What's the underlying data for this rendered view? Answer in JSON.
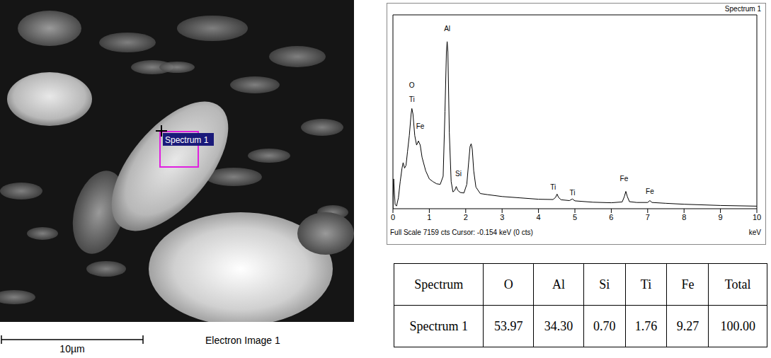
{
  "electron_image": {
    "spectrum_box_label": "Spectrum 1",
    "scale_bar": "10µm",
    "caption": "Electron Image 1"
  },
  "chart_data": {
    "type": "line",
    "title": "Spectrum 1",
    "x_label": "keV",
    "footer": "Full Scale 7159 cts Cursor: -0.154 keV (0 cts)",
    "x": [
      0,
      0.02,
      0.04,
      0.06,
      0.1,
      0.15,
      0.2,
      0.25,
      0.28,
      0.32,
      0.36,
      0.4,
      0.45,
      0.5,
      0.52,
      0.55,
      0.6,
      0.65,
      0.7,
      0.75,
      0.8,
      0.9,
      1.0,
      1.1,
      1.2,
      1.3,
      1.38,
      1.43,
      1.47,
      1.49,
      1.51,
      1.55,
      1.6,
      1.65,
      1.7,
      1.74,
      1.78,
      1.85,
      1.95,
      2.03,
      2.08,
      2.12,
      2.15,
      2.18,
      2.22,
      2.28,
      2.4,
      2.6,
      3.0,
      3.5,
      4.0,
      4.4,
      4.47,
      4.51,
      4.55,
      4.62,
      4.85,
      4.93,
      5.0,
      5.5,
      6.0,
      6.3,
      6.36,
      6.4,
      6.44,
      6.5,
      6.7,
      7.0,
      7.06,
      7.12,
      7.5,
      8.0,
      9.0,
      10.0
    ],
    "values": [
      0,
      1100,
      600,
      150,
      100,
      400,
      1000,
      1500,
      1700,
      1500,
      1600,
      2100,
      2700,
      3500,
      3700,
      3500,
      2700,
      2350,
      2500,
      2350,
      1900,
      1400,
      1100,
      1000,
      920,
      900,
      1200,
      3600,
      5800,
      6170,
      5800,
      2800,
      1000,
      620,
      680,
      820,
      680,
      600,
      580,
      900,
      1700,
      2300,
      2400,
      2200,
      1400,
      800,
      560,
      520,
      450,
      400,
      350,
      340,
      420,
      540,
      420,
      330,
      300,
      360,
      290,
      240,
      220,
      250,
      450,
      640,
      450,
      260,
      230,
      230,
      300,
      230,
      200,
      165,
      120,
      95
    ],
    "color": "#000000",
    "xlim": [
      0,
      10
    ],
    "xticks": [
      0,
      1,
      2,
      3,
      4,
      5,
      6,
      7,
      8,
      9,
      10
    ],
    "ylim": [
      0,
      7159
    ],
    "tick_labels": "x",
    "annotations": [
      {
        "text": "O",
        "x": 0.52,
        "y": 4550
      },
      {
        "text": "Ti",
        "x": 0.52,
        "y": 4050
      },
      {
        "text": "Fe",
        "x": 0.75,
        "y": 3050
      },
      {
        "text": "Al",
        "x": 1.49,
        "y": 6650
      },
      {
        "text": "Si",
        "x": 1.8,
        "y": 1300
      },
      {
        "text": "Ti",
        "x": 4.4,
        "y": 800
      },
      {
        "text": "Ti",
        "x": 4.93,
        "y": 600
      },
      {
        "text": "Fe",
        "x": 6.35,
        "y": 1100
      },
      {
        "text": "Fe",
        "x": 7.06,
        "y": 650
      }
    ]
  },
  "table": {
    "header": [
      "Spectrum",
      "O",
      "Al",
      "Si",
      "Ti",
      "Fe",
      "Total"
    ],
    "rows": [
      [
        "Spectrum 1",
        "53.97",
        "34.30",
        "0.70",
        "1.76",
        "9.27",
        "100.00"
      ]
    ]
  }
}
